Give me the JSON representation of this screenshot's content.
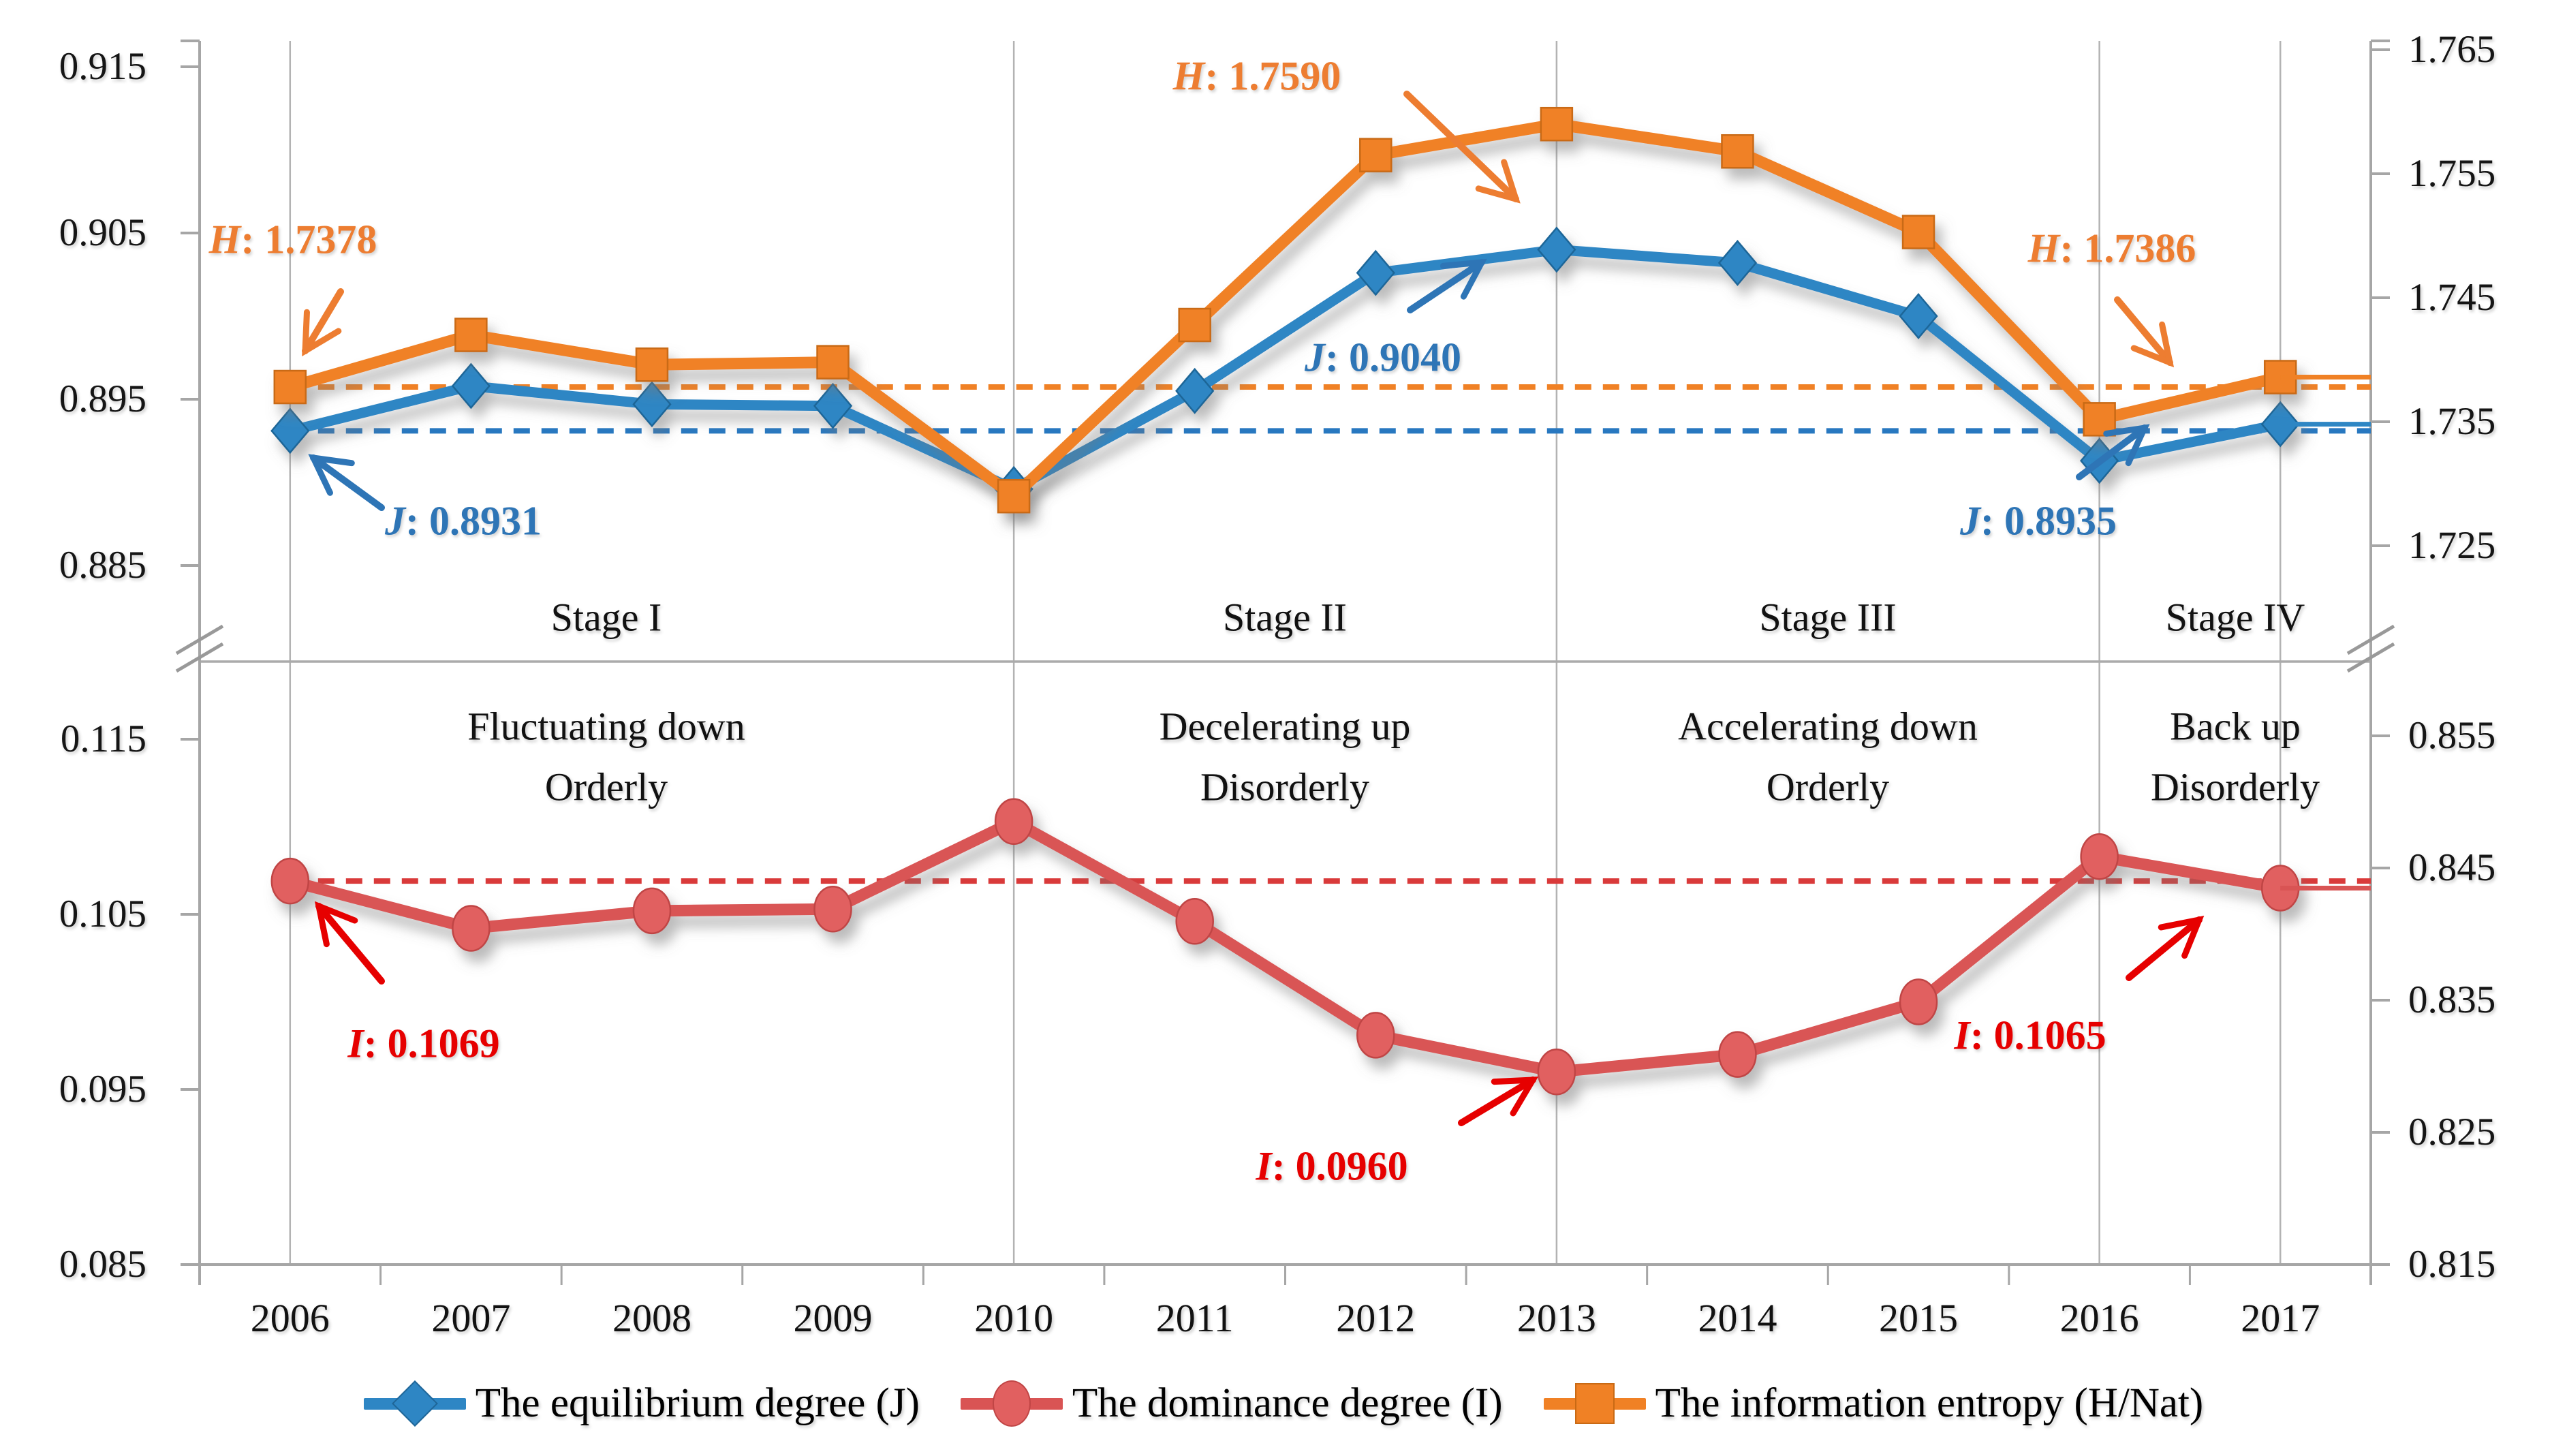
{
  "chart_data": {
    "type": "line",
    "title": "",
    "x": [
      2006,
      2007,
      2008,
      2009,
      2010,
      2011,
      2012,
      2013,
      2014,
      2015,
      2016,
      2017
    ],
    "series": [
      {
        "name": "The equilibrium degree (J)",
        "axis": "top_left",
        "marker": "diamond",
        "color": "#2E86C4",
        "edge_color": "#1F6698",
        "values": [
          0.8931,
          0.8958,
          0.8947,
          0.8946,
          0.8896,
          0.8955,
          0.9026,
          0.904,
          0.9032,
          0.9,
          0.8913,
          0.8935
        ]
      },
      {
        "name": "The dominance degree (I)",
        "axis": "bottom_left",
        "marker": "circle",
        "color": "#D95454",
        "edge_color": "#C04545",
        "values": [
          0.1069,
          0.1042,
          0.1052,
          0.1053,
          0.1103,
          0.1046,
          0.0981,
          0.096,
          0.097,
          0.1,
          0.1083,
          0.1065
        ]
      },
      {
        "name": "The information entropy (H/Nat)",
        "axis": "top_right",
        "marker": "square",
        "color": "#F08125",
        "edge_color": "#C96A14",
        "values": [
          1.7378,
          1.742,
          1.7396,
          1.7398,
          1.729,
          1.7428,
          1.7565,
          1.759,
          1.7568,
          1.7503,
          1.7352,
          1.7386
        ]
      }
    ],
    "axes": {
      "top_left": {
        "ticks": [
          "0.915",
          "0.905",
          "0.895",
          "0.885"
        ],
        "range": [
          0.885,
          0.915
        ]
      },
      "top_right": {
        "ticks": [
          "1.765",
          "1.755",
          "1.745",
          "1.735",
          "1.725"
        ],
        "range": [
          1.725,
          1.765
        ]
      },
      "bottom_left": {
        "ticks": [
          "0.115",
          "0.105",
          "0.095",
          "0.085"
        ],
        "range": [
          0.085,
          0.115
        ]
      },
      "bottom_right": {
        "ticks": [
          "0.855",
          "0.845",
          "0.835",
          "0.825",
          "0.815"
        ],
        "range": [
          0.815,
          0.855
        ]
      }
    },
    "reference_lines": [
      {
        "axis": "top_right",
        "value": 1.7378,
        "color": "#F08125",
        "style": "dashed"
      },
      {
        "axis": "top_left",
        "value": 0.8931,
        "color": "#2878C0",
        "style": "dashed"
      },
      {
        "axis": "bottom_left",
        "value": 0.1069,
        "color": "#D93A3A",
        "style": "dashed"
      }
    ],
    "gridline_years": [
      2006,
      2010,
      2013,
      2016,
      2017
    ],
    "legend_position": "bottom",
    "grid": "partial-vertical",
    "axis_break": true
  },
  "stages": [
    {
      "label": "Stage I",
      "desc1": "Fluctuating down",
      "desc2": "Orderly"
    },
    {
      "label": "Stage II",
      "desc1": "Decelerating up",
      "desc2": "Disorderly"
    },
    {
      "label": "Stage III",
      "desc1": "Accelerating down",
      "desc2": "Orderly"
    },
    {
      "label": "Stage IV",
      "desc1": "Back up",
      "desc2": "Disorderly"
    }
  ],
  "annotations": [
    {
      "id": "h2006",
      "letter": "H",
      "rest": ": 1.7378"
    },
    {
      "id": "j2006",
      "letter": "J",
      "rest": ": 0.8931"
    },
    {
      "id": "h2013",
      "letter": "H",
      "rest": ": 1.7590"
    },
    {
      "id": "j2013",
      "letter": "J",
      "rest": ": 0.9040"
    },
    {
      "id": "h2017",
      "letter": "H",
      "rest": ": 1.7386"
    },
    {
      "id": "j2017",
      "letter": "J",
      "rest": ": 0.8935"
    },
    {
      "id": "i2006",
      "letter": "I",
      "rest": ": 0.1069"
    },
    {
      "id": "i2013",
      "letter": "I",
      "rest": ": 0.0960"
    },
    {
      "id": "i2017",
      "letter": "I",
      "rest": ": 0.1065"
    }
  ],
  "legend": {
    "items": [
      {
        "label": "The equilibrium degree (J)"
      },
      {
        "label": "The dominance degree (I)"
      },
      {
        "label": "The information entropy (H/Nat)"
      }
    ]
  },
  "colors": {
    "blue": "#2E86C4",
    "orange": "#F08125",
    "red": "#D95454",
    "blue_text": "#2E75B6",
    "orange_text": "#ED7D31",
    "red_text": "#E60000",
    "gridline": "#B3B3B3",
    "axis": "#A6A6A6"
  }
}
